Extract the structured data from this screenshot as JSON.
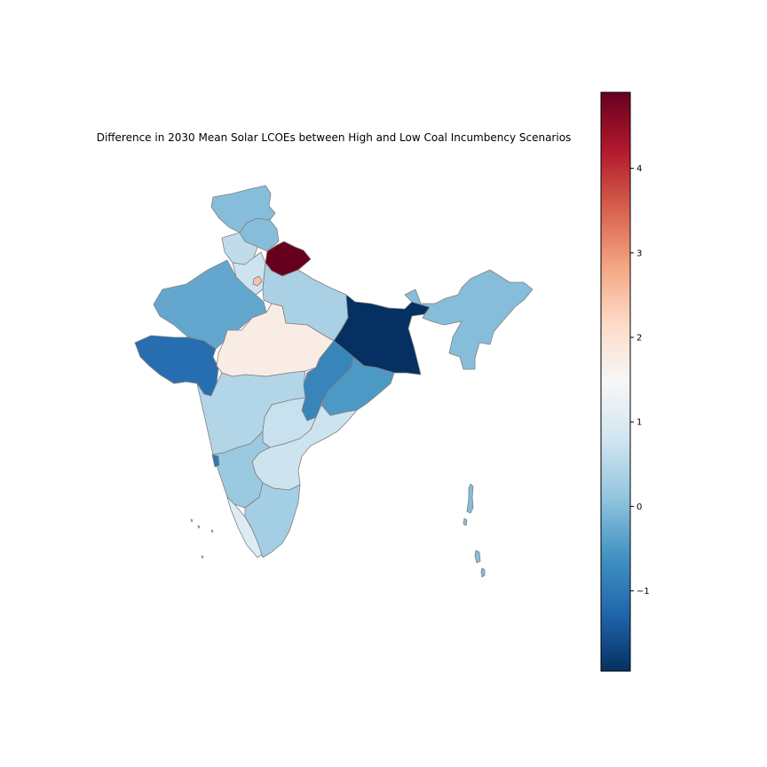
{
  "title": "Difference in 2030 Mean Solar LCOEs between High and Low Coal Incumbency Scenarios",
  "colormap": {
    "name": "RdBu_r",
    "vmin": -1.95,
    "vmax": 4.9,
    "stops": [
      "#053061",
      "#2166ac",
      "#4393c3",
      "#92c5de",
      "#d1e5f0",
      "#f7f7f7",
      "#fddbc7",
      "#f4a582",
      "#d6604d",
      "#b2182b",
      "#67001f"
    ]
  },
  "colorbar": {
    "ticks": [
      -1,
      0,
      1,
      2,
      3,
      4
    ],
    "tick_labels": [
      "−1",
      "0",
      "1",
      "2",
      "3",
      "4"
    ]
  },
  "regions": [
    {
      "id": "jammu-kashmir",
      "value": 0.0
    },
    {
      "id": "himachal-pradesh",
      "value": 0.0
    },
    {
      "id": "punjab",
      "value": 0.6
    },
    {
      "id": "uttarakhand",
      "value": 4.9
    },
    {
      "id": "haryana",
      "value": 0.75
    },
    {
      "id": "delhi",
      "value": 2.5
    },
    {
      "id": "rajasthan",
      "value": -0.3
    },
    {
      "id": "uttar-pradesh",
      "value": 0.35
    },
    {
      "id": "east-block",
      "value": -1.95
    },
    {
      "id": "northeast",
      "value": 0.0
    },
    {
      "id": "gujarat",
      "value": -1.15
    },
    {
      "id": "madhya-pradesh",
      "value": 1.75
    },
    {
      "id": "chhattisgarh",
      "value": -0.8
    },
    {
      "id": "odisha",
      "value": -0.5
    },
    {
      "id": "maharashtra",
      "value": 0.45
    },
    {
      "id": "telangana",
      "value": 0.7
    },
    {
      "id": "andhra-pradesh",
      "value": 0.75
    },
    {
      "id": "karnataka",
      "value": 0.2
    },
    {
      "id": "goa",
      "value": -1.0
    },
    {
      "id": "kerala",
      "value": 1.0
    },
    {
      "id": "tamil-nadu",
      "value": 0.3
    },
    {
      "id": "andaman-nicobar",
      "value": 0.0
    },
    {
      "id": "lakshadweep",
      "value": 0.0
    }
  ]
}
